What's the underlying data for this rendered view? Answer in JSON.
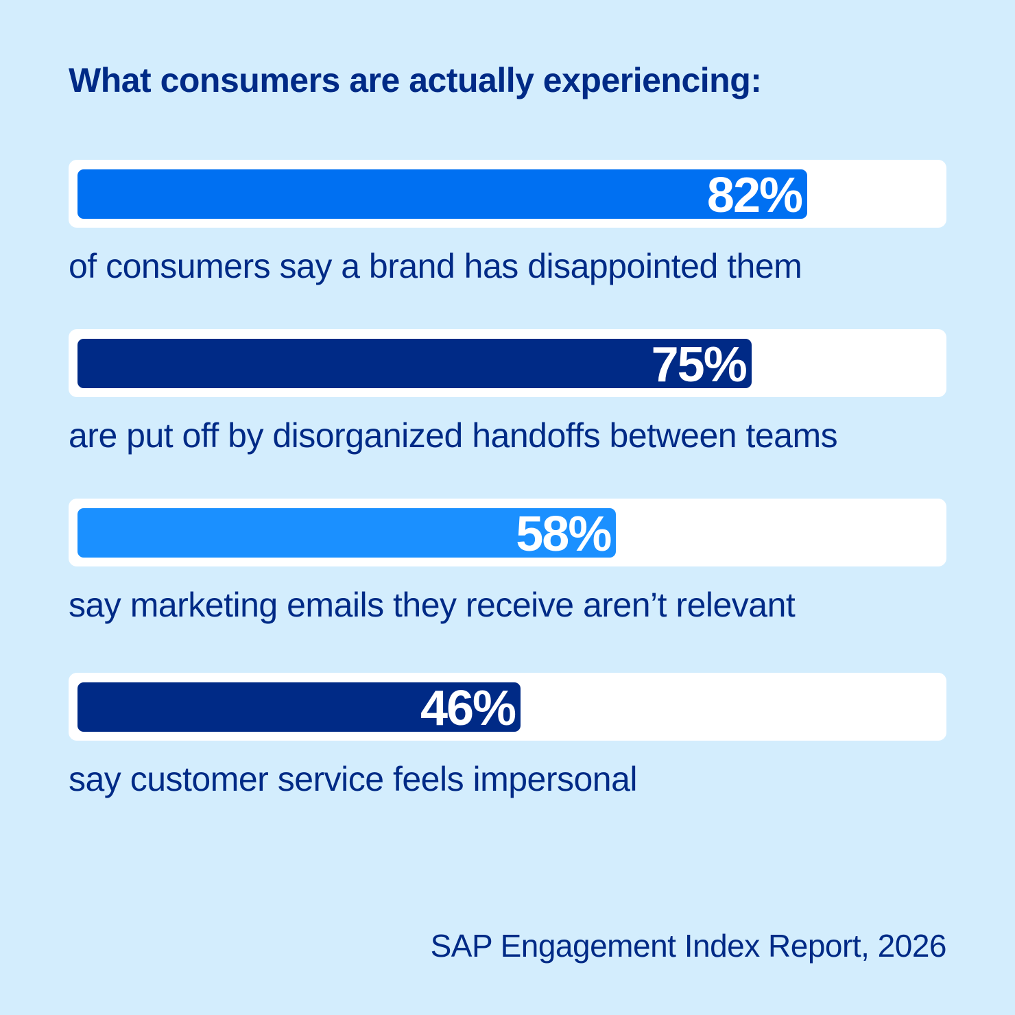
{
  "chart_data": {
    "type": "bar",
    "orientation": "horizontal",
    "title": "What consumers are actually experiencing:",
    "unit": "%",
    "xlim": [
      0,
      100
    ],
    "grid": false,
    "items": [
      {
        "value": 82,
        "label": "82%",
        "description": "of consumers say a brand has disappointed them",
        "color": "#0070f2"
      },
      {
        "value": 75,
        "label": "75%",
        "description": "are put off by disorganized handoffs between teams",
        "color": "#002a86"
      },
      {
        "value": 58,
        "label": "58%",
        "description": "say marketing emails they receive aren’t relevant",
        "color": "#1b90ff"
      },
      {
        "value": 46,
        "label": "46%",
        "description": "say customer service feels impersonal",
        "color": "#002a86"
      }
    ],
    "source": "SAP Engagement Index Report, 2026"
  },
  "colors": {
    "background": "#d3edfd",
    "text": "#002a86",
    "track": "#ffffff"
  }
}
